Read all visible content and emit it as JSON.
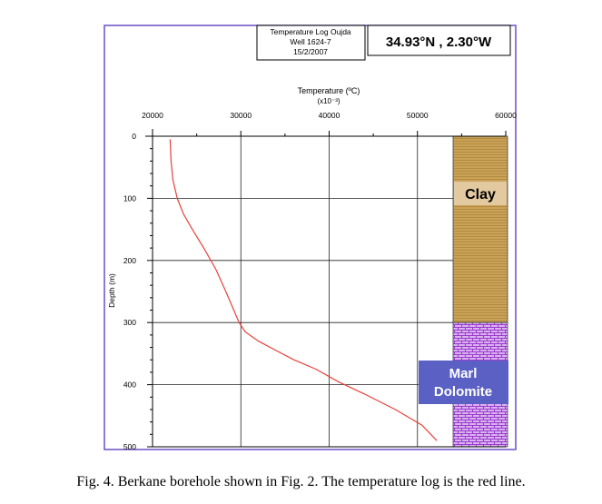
{
  "chart_data": {
    "type": "line",
    "title_box": {
      "lines": [
        "Temperature Log Oujda",
        "Well 1624-7",
        "15/2/2007"
      ]
    },
    "coordinates": "34.93°N , 2.30°W",
    "xlabel": "Temperature (ºC)",
    "xlabel_scale": "(x10⁻³)",
    "ylabel": "Depth (m)",
    "xlim": [
      20000,
      60000
    ],
    "ylim": [
      0,
      500
    ],
    "x_ticks": [
      "20000",
      "30000",
      "40000",
      "50000",
      "60000"
    ],
    "y_ticks": [
      "0",
      "100",
      "200",
      "300",
      "400",
      "500"
    ],
    "grid": true,
    "series": [
      {
        "color": "#e8413a",
        "x": [
          22000,
          22100,
          22300,
          22800,
          23500,
          24500,
          25800,
          27200,
          28300,
          29200,
          29800,
          30500,
          32000,
          34000,
          36000,
          38500,
          41000,
          44000,
          47500,
          50500,
          52200
        ],
        "y": [
          5,
          40,
          70,
          100,
          125,
          150,
          180,
          215,
          250,
          280,
          300,
          315,
          330,
          345,
          360,
          375,
          395,
          415,
          440,
          465,
          490
        ]
      }
    ],
    "lithology": [
      {
        "label": "Clay",
        "top": 0,
        "bottom": 300,
        "color": "#c9a257",
        "label_bg": "#e3c9a0"
      },
      {
        "label": "Marl\nDolomite",
        "label_lines": [
          "Marl",
          "Dolomite"
        ],
        "top": 300,
        "bottom": 500,
        "color": "#b45bd6",
        "label_bg": "#5b61c4"
      }
    ]
  },
  "caption": "Fig. 4. Berkane borehole shown in Fig. 2. The temperature log is the red line."
}
